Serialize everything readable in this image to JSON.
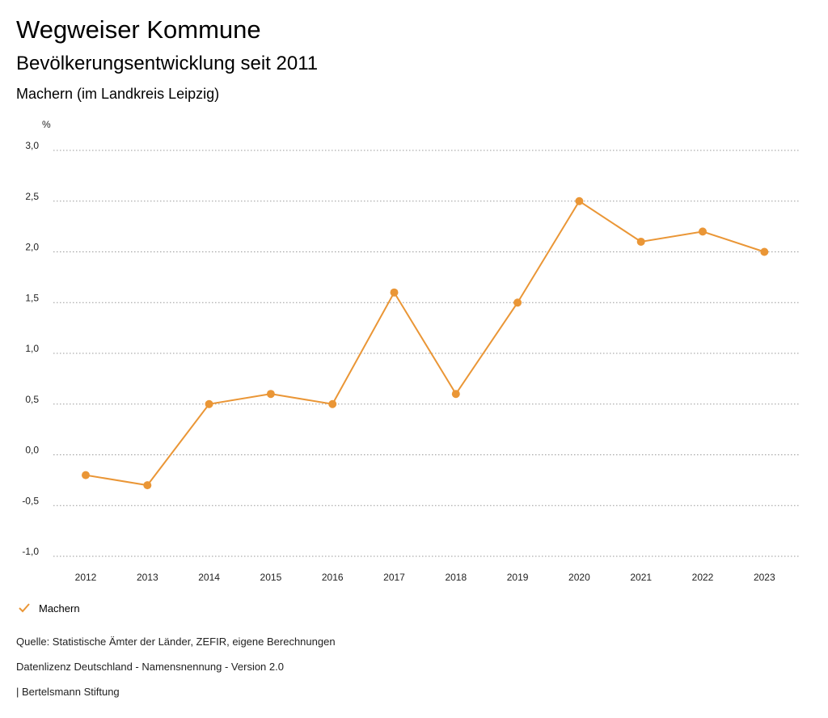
{
  "header": {
    "title": "Wegweiser Kommune",
    "subtitle": "Bevölkerungsentwicklung seit 2011",
    "region": "Machern (im Landkreis Leipzig)"
  },
  "chart_data": {
    "type": "line",
    "ylabel": "%",
    "xlabel": "",
    "ylim": [
      -1.0,
      3.0
    ],
    "yticks": [
      3.0,
      2.5,
      2.0,
      1.5,
      1.0,
      0.5,
      0.0,
      -0.5,
      -1.0
    ],
    "ytick_labels": [
      "3,0",
      "2,5",
      "2,0",
      "1,5",
      "1,0",
      "0,5",
      "0,0",
      "-0,5",
      "-1,0"
    ],
    "categories": [
      "2012",
      "2013",
      "2014",
      "2015",
      "2016",
      "2017",
      "2018",
      "2019",
      "2020",
      "2021",
      "2022",
      "2023"
    ],
    "series": [
      {
        "name": "Machern",
        "color": "#ea9636",
        "values": [
          -0.2,
          -0.3,
          0.5,
          0.6,
          0.5,
          1.6,
          0.6,
          1.5,
          2.5,
          2.1,
          2.2,
          2.0
        ]
      }
    ],
    "grid": true,
    "legend_position": "bottom-left"
  },
  "legend": {
    "items": [
      {
        "label": "Machern",
        "icon": "checkmark-icon",
        "color": "#ea9636"
      }
    ]
  },
  "footer": {
    "source": "Quelle: Statistische Ämter der Länder, ZEFIR, eigene Berechnungen",
    "license": "Datenlizenz Deutschland - Namensnennung - Version 2.0",
    "publisher": "| Bertelsmann Stiftung"
  }
}
